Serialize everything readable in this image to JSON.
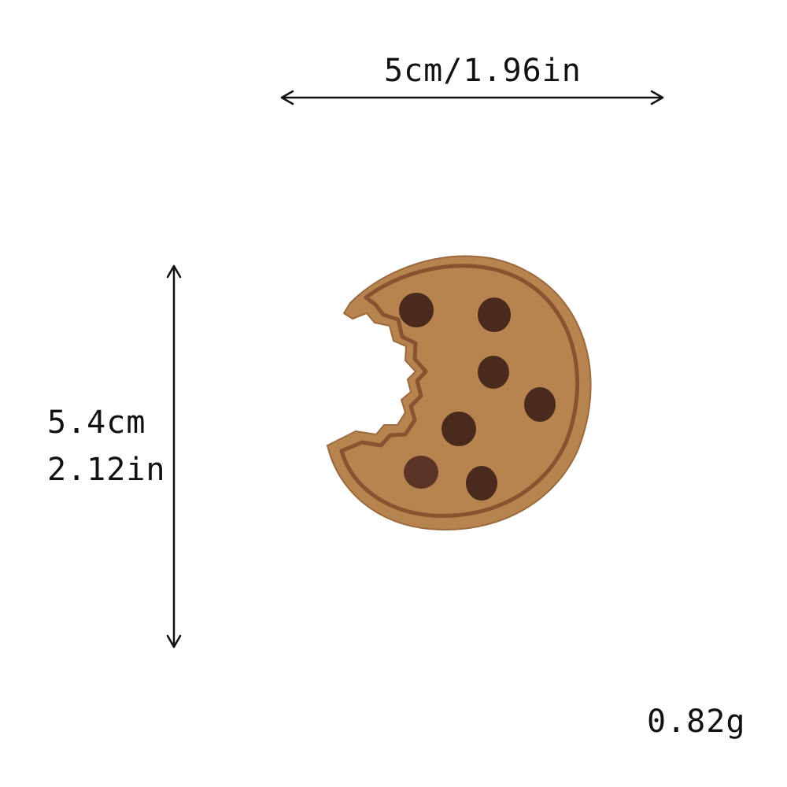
{
  "dimensions": {
    "width_text": "5cm/1.96in",
    "height_text_cm": "5.4cm",
    "height_text_in": "2.12in",
    "weight_text": "0.82g"
  },
  "product": {
    "icon": "cookie-patch",
    "colors": {
      "fabric": "#b7834f",
      "stitch_border": "#8a5230",
      "chips": "#4a2a1c",
      "arrows": "#111111"
    }
  }
}
